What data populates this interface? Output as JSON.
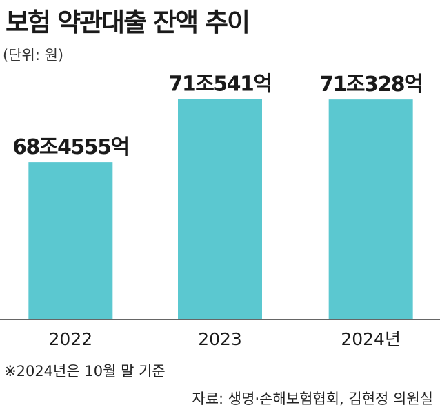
{
  "title": "보험 약관대출 잔액 추이",
  "unit_label": "(단위: 원)",
  "note": "※2024년은 10월 말 기준",
  "source": "자료: 생명·손해보험협회, 김현정 의원실",
  "colors": {
    "bar": "#5BC8D0",
    "axis": "#333333",
    "text": "#1a1a1a"
  },
  "chart_data": {
    "type": "bar",
    "categories": [
      "2022",
      "2023",
      "2024년"
    ],
    "values": [
      68.4555,
      71.0541,
      71.0328
    ],
    "value_labels": [
      "68조4555억",
      "71조541억",
      "71조328억"
    ],
    "title": "보험 약관대출 잔액 추이",
    "xlabel": "",
    "ylabel": "",
    "unit": "원",
    "ylim": [
      62,
      72
    ],
    "grid": false
  }
}
